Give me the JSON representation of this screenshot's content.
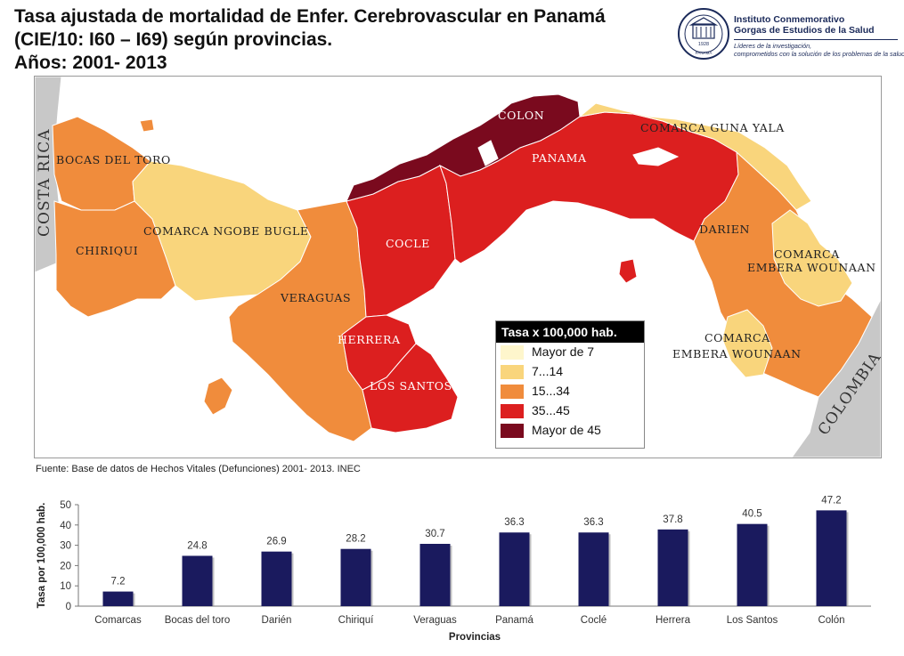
{
  "title": {
    "line1": "Tasa ajustada de mortalidad de Enfer. Cerebrovascular en Panamá",
    "line2": "(CIE/10: I60 – I69) según  provincias.",
    "line3": "Años: 2001- 2013"
  },
  "logo": {
    "name1": "Instituto Conmemorativo",
    "name2": "Gorgas de Estudios de la Salud",
    "tagline1": "Líderes de la investigación,",
    "tagline2": "comprometidos con la solución de los problemas de la salud",
    "seal_year": "1928",
    "seal_place": "PANAMÁ"
  },
  "map": {
    "country_labels": {
      "costa_rica": "COSTA RICA",
      "colombia": "COLOMBIA"
    },
    "region_labels": {
      "colon": "COLON",
      "panama": "PANAMA",
      "guna_yala": "COMARCA GUNA YALA",
      "bocas": "BOCAS DEL TORO",
      "ngobe": "COMARCA NGOBE BUGLE",
      "chiriqui": "CHIRIQUI",
      "cocle": "COCLE",
      "veraguas": "VERAGUAS",
      "herrera": "HERRERA",
      "los_santos": "LOS SANTOS",
      "darien": "DARIEN",
      "embera1_a": "COMARCA",
      "embera1_b": "EMBERA WOUNAAN",
      "embera2_a": "COMARCA",
      "embera2_b": "EMBERA WOUNAAN"
    },
    "colors": {
      "lt7": "#fef6cc",
      "c7_14": "#f9d57c",
      "c15_34": "#f08c3c",
      "c35_45": "#dc1f1f",
      "gt45": "#7a0a1e",
      "neighbor": "#c8c8c8",
      "sea": "#ffffff"
    }
  },
  "legend": {
    "title": "Tasa x 100,000 hab.",
    "items": [
      {
        "label": "Mayor de 7",
        "color": "#fef6cc"
      },
      {
        "label": "7...14",
        "color": "#f9d57c"
      },
      {
        "label": "15...34",
        "color": "#f08c3c"
      },
      {
        "label": "35...45",
        "color": "#dc1f1f"
      },
      {
        "label": "Mayor de 45",
        "color": "#7a0a1e"
      }
    ]
  },
  "source": "Fuente: Base de datos de Hechos Vitales (Defunciones) 2001- 2013. INEC",
  "chart_data": {
    "type": "bar",
    "categories": [
      "Comarcas",
      "Bocas del toro",
      "Darién",
      "Chiriquí",
      "Veraguas",
      "Panamá",
      "Coclé",
      "Herrera",
      "Los Santos",
      "Colón"
    ],
    "values": [
      7.2,
      24.8,
      26.9,
      28.2,
      30.7,
      36.3,
      36.3,
      37.8,
      40.5,
      47.2
    ],
    "xlabel": "Provincias",
    "ylabel": "Tasa por 100,000 hab.",
    "ylim": [
      0,
      50
    ],
    "yticks": [
      0,
      10,
      20,
      30,
      40,
      50
    ],
    "bar_color": "#1a1a5e",
    "grid": false
  }
}
